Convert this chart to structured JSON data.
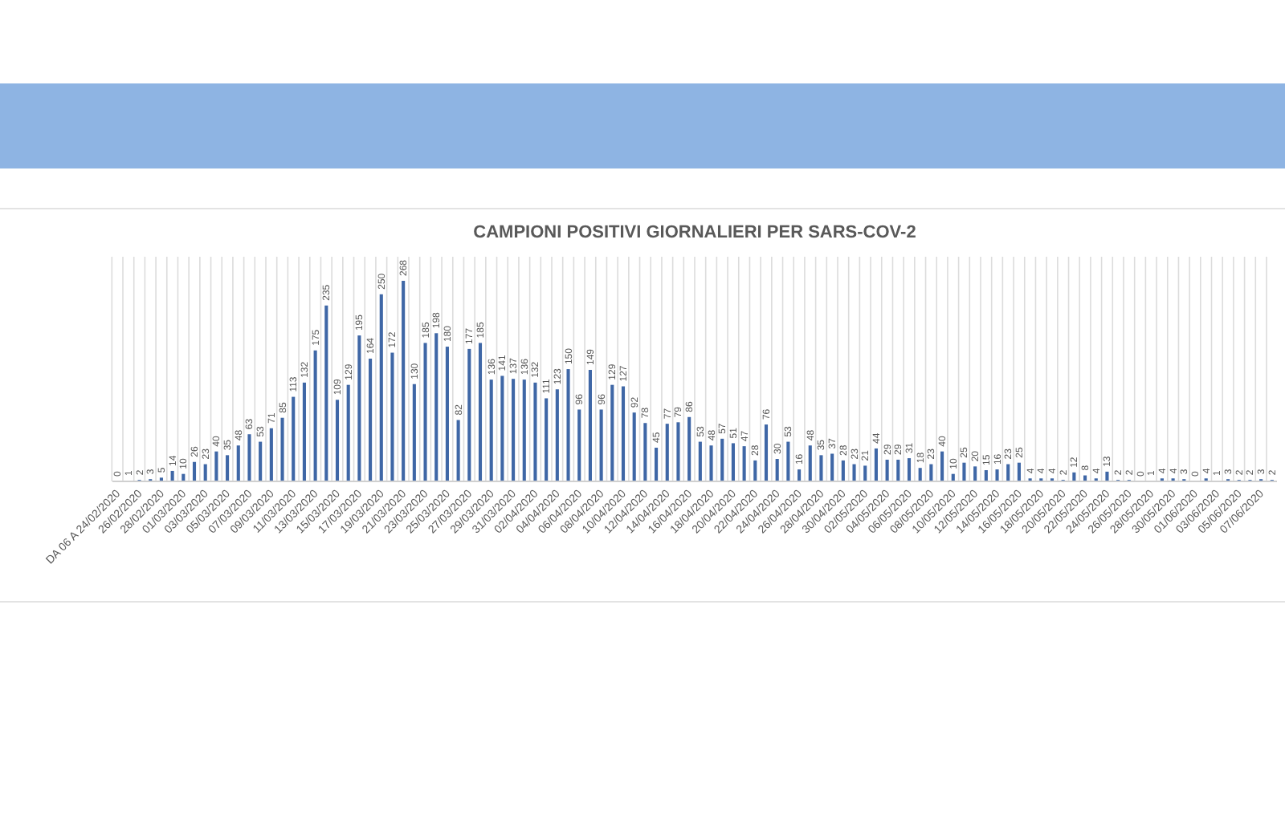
{
  "chart_data": {
    "type": "bar",
    "title": "CAMPIONI POSITIVI GIORNALIERI PER SARS-COV-2",
    "categories": [
      "DA 06 A 24/02/2020",
      null,
      "26/02/2020",
      null,
      "28/02/2020",
      null,
      "01/03/2020",
      null,
      "03/03/2020",
      null,
      "05/03/2020",
      null,
      "07/03/2020",
      null,
      "09/03/2020",
      null,
      "11/03/2020",
      null,
      "13/03/2020",
      null,
      "15/03/2020",
      null,
      "17/03/2020",
      null,
      "19/03/2020",
      null,
      "21/03/2020",
      null,
      "23/03/2020",
      null,
      "25/03/2020",
      null,
      "27/03/2020",
      null,
      "29/03/2020",
      null,
      "31/03/2020",
      null,
      "02/04/2020",
      null,
      "04/04/2020",
      null,
      "06/04/2020",
      null,
      "08/04/2020",
      null,
      "10/04/2020",
      null,
      "12/04/2020",
      null,
      "14/04/2020",
      null,
      "16/04/2020",
      null,
      "18/04/2020",
      null,
      "20/04/2020",
      null,
      "22/04/2020",
      null,
      "24/04/2020",
      null,
      "26/04/2020",
      null,
      "28/04/2020",
      null,
      "30/04/2020",
      null,
      "02/05/2020",
      null,
      "04/05/2020",
      null,
      "06/05/2020",
      null,
      "08/05/2020",
      null,
      "10/05/2020",
      null,
      "12/05/2020",
      null,
      "14/05/2020",
      null,
      "16/05/2020",
      null,
      "18/05/2020",
      null,
      "20/05/2020",
      null,
      "22/05/2020",
      null,
      "24/05/2020",
      null,
      "26/05/2020",
      null,
      "28/05/2020",
      null,
      "30/05/2020",
      null,
      "01/06/2020",
      null,
      "03/06/2020",
      null,
      "05/06/2020",
      null,
      "07/06/2020",
      null
    ],
    "values": [
      0,
      1,
      2,
      3,
      5,
      14,
      10,
      26,
      23,
      40,
      35,
      48,
      63,
      53,
      71,
      85,
      113,
      132,
      175,
      235,
      109,
      129,
      195,
      164,
      250,
      172,
      268,
      130,
      185,
      198,
      180,
      82,
      177,
      185,
      136,
      141,
      137,
      136,
      132,
      111,
      123,
      150,
      96,
      149,
      96,
      129,
      127,
      92,
      78,
      45,
      77,
      79,
      86,
      53,
      48,
      57,
      51,
      47,
      28,
      76,
      30,
      53,
      16,
      48,
      35,
      37,
      28,
      23,
      21,
      44,
      29,
      29,
      31,
      18,
      23,
      40,
      10,
      25,
      20,
      15,
      16,
      23,
      25,
      4,
      4,
      4,
      2,
      12,
      8,
      4,
      13,
      2,
      2,
      0,
      1,
      4,
      4,
      3,
      0,
      4,
      1,
      3,
      2,
      2,
      3,
      2
    ],
    "color": "#3f67a6",
    "data_labels": true,
    "grid": "x"
  }
}
